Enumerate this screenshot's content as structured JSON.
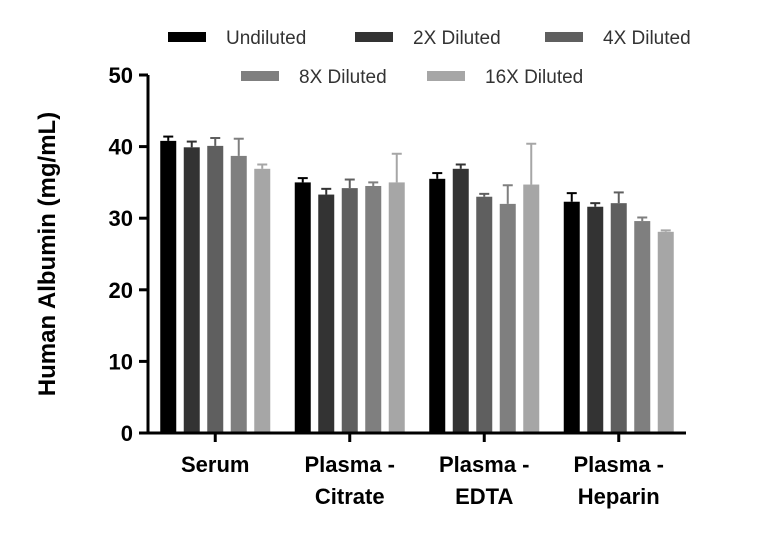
{
  "chart_data": {
    "type": "bar",
    "title": "",
    "xlabel": "",
    "ylabel": "Human Albumin (mg/mL)",
    "ylim": [
      0,
      50
    ],
    "yticks": [
      "0",
      "10",
      "20",
      "30",
      "40",
      "50"
    ],
    "categories": [
      [
        "Serum"
      ],
      [
        "Plasma -",
        "Citrate"
      ],
      [
        "Plasma -",
        "EDTA"
      ],
      [
        "Plasma -",
        "Heparin"
      ]
    ],
    "legend_position": "top",
    "series": [
      {
        "name": "Undiluted",
        "color": "#000000",
        "values": [
          40.8,
          35.0,
          35.5,
          32.3
        ],
        "errors": [
          0.6,
          0.6,
          0.8,
          1.2
        ]
      },
      {
        "name": "2X Diluted",
        "color": "#333333",
        "values": [
          39.9,
          33.3,
          36.9,
          31.6
        ],
        "errors": [
          0.8,
          0.8,
          0.6,
          0.5
        ]
      },
      {
        "name": "4X Diluted",
        "color": "#5f5f5f",
        "values": [
          40.1,
          34.2,
          33.0,
          32.1
        ],
        "errors": [
          1.1,
          1.2,
          0.4,
          1.5
        ]
      },
      {
        "name": "8X Diluted",
        "color": "#7f7f7f",
        "values": [
          38.7,
          34.5,
          32.0,
          29.6
        ],
        "errors": [
          2.4,
          0.5,
          2.6,
          0.5
        ]
      },
      {
        "name": "16X Diluted",
        "color": "#a6a6a6",
        "values": [
          36.9,
          35.0,
          34.7,
          28.1
        ],
        "errors": [
          0.6,
          4.0,
          5.7,
          0.2
        ]
      }
    ]
  }
}
